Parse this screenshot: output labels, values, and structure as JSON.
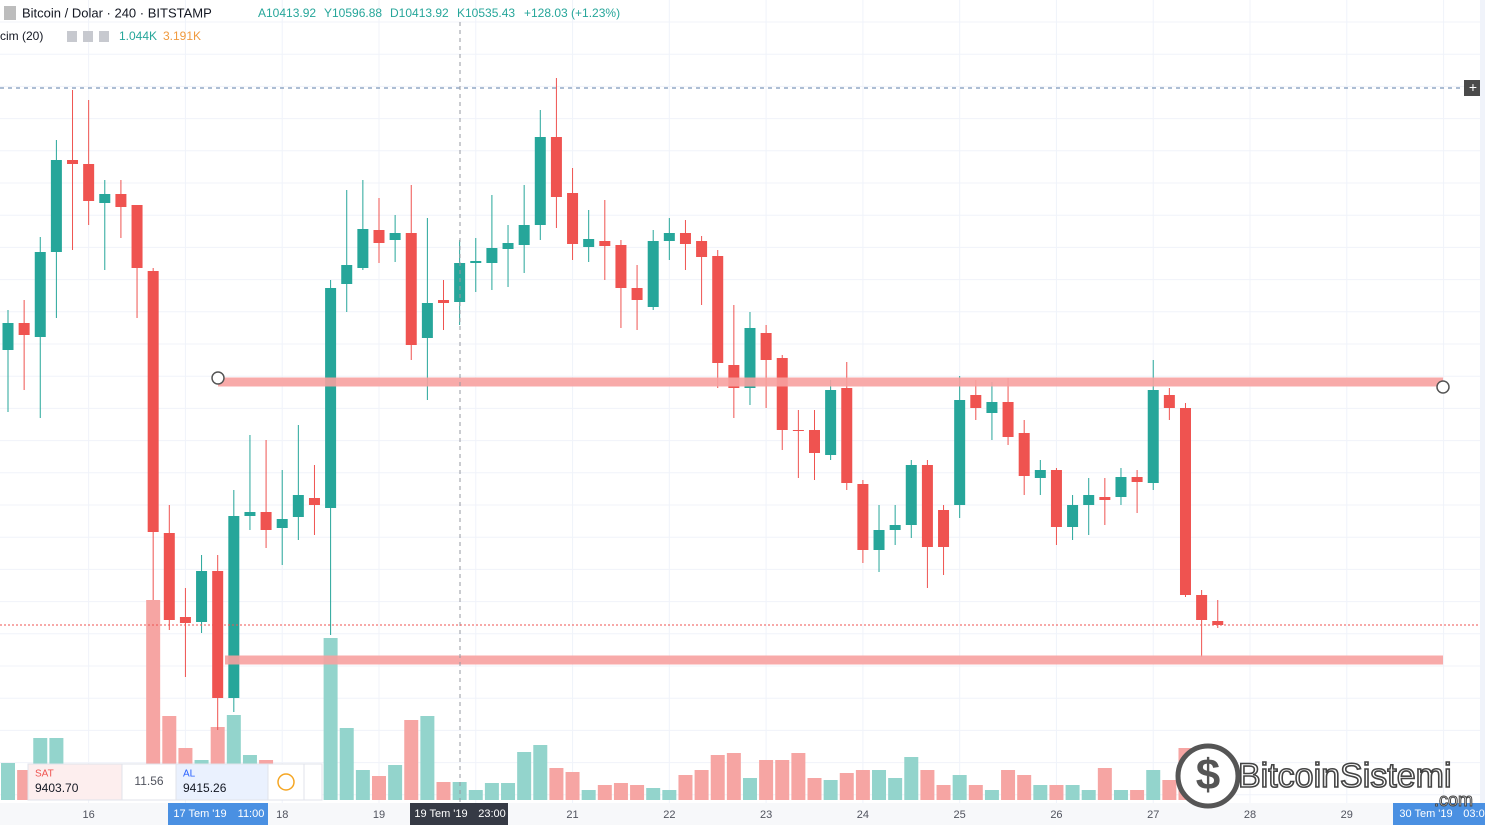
{
  "header": {
    "symbol": "Bitcoin / Dolar · 240 · BITSTAMP",
    "open": "A10413.92",
    "high": "Y10596.88",
    "low": "D10413.92",
    "close": "K10535.43",
    "change": "+128.03 (+1.23%)"
  },
  "indicator": {
    "name": "cim (20)",
    "value1": "1.044K",
    "value2": "3.191K"
  },
  "order_panel": {
    "sell_label": "SAT",
    "sell_price": "9403.70",
    "spread": "11.56",
    "buy_label": "AL",
    "buy_price": "9415.26"
  },
  "crosshair_labels": [
    {
      "date": "17 Tem '19",
      "time": "11:00"
    },
    {
      "date": "19 Tem '19",
      "time": "23:00"
    },
    {
      "date": "30 Tem '19",
      "time": "03:0"
    }
  ],
  "watermark": {
    "name": "BitcoinSistemi",
    "domain": ".com"
  },
  "chart_data": {
    "type": "candlestick",
    "up_color": "#26a69a",
    "down_color": "#ef5350",
    "volume_up_color": "#93d4cc",
    "volume_down_color": "#f6a5a3",
    "ylim": [
      8850,
      11280
    ],
    "volume_lim": [
      0,
      28000
    ],
    "grid": true,
    "categories": [
      null,
      null,
      null,
      null,
      null,
      "16",
      null,
      null,
      null,
      null,
      null,
      null,
      null,
      null,
      null,
      null,
      null,
      "18",
      null,
      null,
      null,
      null,
      null,
      "19",
      null,
      null,
      null,
      null,
      null,
      null,
      null,
      null,
      null,
      null,
      null,
      "21",
      null,
      null,
      null,
      null,
      null,
      "22",
      null,
      null,
      null,
      null,
      null,
      "23",
      null,
      null,
      null,
      null,
      null,
      "24",
      null,
      null,
      null,
      null,
      null,
      "25",
      null,
      null,
      null,
      null,
      null,
      "26",
      null,
      null,
      null,
      null,
      null,
      "27",
      null,
      null,
      null,
      null
    ],
    "future_categories": [
      "28",
      "29"
    ],
    "open": [
      10230,
      10311,
      10269,
      10524,
      10800,
      10788,
      10671,
      10698,
      10665,
      10467,
      9681,
      9429,
      9414,
      9567,
      9186,
      9732,
      9744,
      9696,
      9729,
      9786,
      9756,
      10428,
      10476,
      10590,
      10560,
      10581,
      10266,
      10380,
      10374,
      10491,
      10491,
      10533,
      10545,
      10605,
      10869,
      10701,
      10539,
      10557,
      10545,
      10416,
      10359,
      10557,
      10581,
      10557,
      10512,
      10185,
      10116,
      10281,
      10206,
      9990,
      9990,
      9915,
      10116,
      9828,
      9630,
      9690,
      9705,
      9885,
      9750,
      9765,
      10095,
      10041,
      10074,
      9981,
      9846,
      9870,
      9699,
      9765,
      9789,
      9789,
      9849,
      9831,
      10095,
      10056,
      9495,
      9417
    ],
    "high": [
      10350,
      10380,
      10569,
      10860,
      11010,
      10980,
      10740,
      10740,
      10665,
      10476,
      9765,
      9516,
      9615,
      9615,
      9810,
      9975,
      9960,
      9870,
      10005,
      9885,
      10440,
      10710,
      10740,
      10686,
      10635,
      10725,
      10626,
      10440,
      10560,
      10566,
      10695,
      10605,
      10725,
      10950,
      11046,
      10776,
      10650,
      10680,
      10560,
      10485,
      10590,
      10626,
      10620,
      10572,
      10530,
      10365,
      10344,
      10305,
      10215,
      10050,
      10050,
      10140,
      10194,
      9840,
      9765,
      9765,
      9900,
      9900,
      9765,
      10152,
      10140,
      10134,
      10146,
      10020,
      9900,
      9876,
      9795,
      9846,
      9846,
      9876,
      9870,
      10200,
      10116,
      10071,
      9510,
      9480
    ],
    "low": [
      10044,
      10110,
      10026,
      10326,
      10530,
      10605,
      10470,
      10566,
      10326,
      9480,
      9390,
      9249,
      9381,
      9090,
      9144,
      9690,
      9636,
      9585,
      9660,
      9675,
      9375,
      10344,
      10470,
      10491,
      10494,
      10200,
      10080,
      10290,
      10305,
      10404,
      10410,
      10419,
      10461,
      10560,
      10596,
      10500,
      10494,
      10440,
      10296,
      10290,
      10350,
      10500,
      10470,
      10365,
      10116,
      10026,
      10065,
      10056,
      9930,
      9846,
      9840,
      9900,
      9810,
      9591,
      9564,
      9645,
      9666,
      9516,
      9555,
      9726,
      10020,
      9960,
      9945,
      9795,
      9795,
      9645,
      9660,
      9675,
      9705,
      9765,
      9741,
      9810,
      10020,
      9489,
      9309,
      9396
    ],
    "close": [
      10311,
      10275,
      10524,
      10800,
      10788,
      10677,
      10698,
      10659,
      10476,
      9684,
      9420,
      9411,
      9567,
      9186,
      9732,
      9744,
      9690,
      9723,
      9795,
      9765,
      10416,
      10485,
      10593,
      10551,
      10581,
      10245,
      10371,
      10371,
      10491,
      10497,
      10536,
      10551,
      10605,
      10869,
      10689,
      10548,
      10563,
      10542,
      10416,
      10380,
      10557,
      10581,
      10548,
      10509,
      10191,
      10116,
      10296,
      10200,
      9990,
      9987,
      9921,
      10110,
      9831,
      9630,
      9690,
      9705,
      9885,
      9639,
      9639,
      10080,
      10056,
      10074,
      9969,
      9852,
      9870,
      9699,
      9765,
      9795,
      9780,
      9849,
      9834,
      10110,
      10056,
      9495,
      9420,
      9405
    ],
    "volume": [
      1295,
      1050,
      2170,
      2170,
      700,
      700,
      700,
      700,
      700,
      7000,
      2940,
      1820,
      1400,
      2555,
      2975,
      1575,
      1400,
      700,
      700,
      350,
      5670,
      2520,
      1050,
      840,
      1225,
      2800,
      2940,
      630,
      630,
      350,
      595,
      595,
      1680,
      1925,
      1120,
      980,
      350,
      525,
      595,
      525,
      420,
      350,
      875,
      1050,
      1575,
      1645,
      770,
      1400,
      1400,
      1645,
      770,
      700,
      945,
      1050,
      1050,
      770,
      1505,
      1050,
      525,
      875,
      525,
      350,
      1050,
      875,
      525,
      525,
      525,
      350,
      1120,
      350,
      350,
      1050,
      700,
      1820,
      700,
      350
    ]
  }
}
